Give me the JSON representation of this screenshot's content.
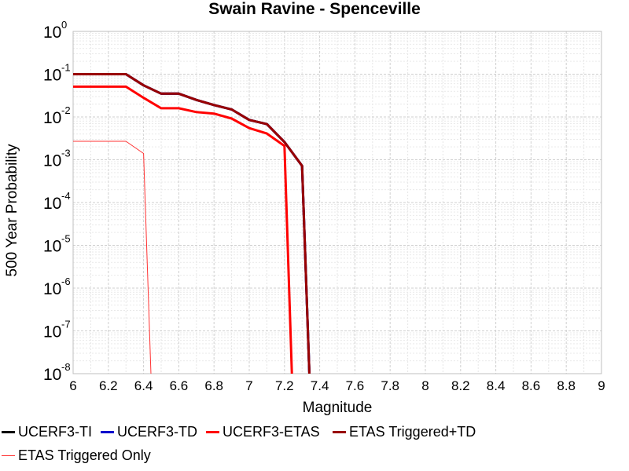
{
  "chart_data": {
    "type": "line",
    "title": "Swain Ravine - Spenceville",
    "xlabel": "Magnitude",
    "ylabel": "500 Year Probability",
    "xlim": [
      6,
      9
    ],
    "ylim": [
      1e-08,
      1
    ],
    "yscale": "log",
    "x_ticks": [
      "6",
      "6.2",
      "6.4",
      "6.6",
      "6.8",
      "7",
      "7.2",
      "7.4",
      "7.6",
      "7.8",
      "8",
      "8.2",
      "8.4",
      "8.6",
      "8.8",
      "9"
    ],
    "y_ticks": [
      {
        "base": "10",
        "exp": "0"
      },
      {
        "base": "10",
        "exp": "-1"
      },
      {
        "base": "10",
        "exp": "-2"
      },
      {
        "base": "10",
        "exp": "-3"
      },
      {
        "base": "10",
        "exp": "-4"
      },
      {
        "base": "10",
        "exp": "-5"
      },
      {
        "base": "10",
        "exp": "-6"
      },
      {
        "base": "10",
        "exp": "-7"
      },
      {
        "base": "10",
        "exp": "-8"
      }
    ],
    "grid": true,
    "legend_position": "bottom",
    "series": [
      {
        "name": "UCERF3-TI",
        "color": "#000000",
        "width": 3,
        "x": [
          6.0,
          6.3,
          6.4,
          6.5,
          6.6,
          6.7,
          6.8,
          6.9,
          7.0,
          7.1,
          7.2,
          7.3,
          7.35
        ],
        "y": [
          0.1,
          0.1,
          0.055,
          0.035,
          0.035,
          0.025,
          0.019,
          0.015,
          0.0085,
          0.0068,
          0.0026,
          0.00072,
          1e-09
        ]
      },
      {
        "name": "UCERF3-TD",
        "color": "#0000cc",
        "width": 3,
        "x": [
          6.0,
          6.3,
          6.4,
          6.5,
          6.6,
          6.7,
          6.8,
          6.9,
          7.0,
          7.1,
          7.2,
          7.3,
          7.35
        ],
        "y": [
          0.1,
          0.1,
          0.055,
          0.035,
          0.035,
          0.025,
          0.019,
          0.015,
          0.0085,
          0.0068,
          0.0026,
          0.00072,
          1e-09
        ]
      },
      {
        "name": "UCERF3-ETAS",
        "color": "#ff0000",
        "width": 3,
        "x": [
          6.0,
          6.3,
          6.4,
          6.5,
          6.6,
          6.7,
          6.8,
          6.9,
          7.0,
          7.1,
          7.2,
          7.25
        ],
        "y": [
          0.051,
          0.051,
          0.028,
          0.016,
          0.016,
          0.013,
          0.012,
          0.0092,
          0.0055,
          0.0041,
          0.0021,
          1e-09
        ]
      },
      {
        "name": "ETAS Triggered+TD",
        "color": "#990000",
        "width": 3,
        "x": [
          6.0,
          6.3,
          6.4,
          6.5,
          6.6,
          6.7,
          6.8,
          6.9,
          7.0,
          7.1,
          7.2,
          7.3,
          7.35
        ],
        "y": [
          0.1,
          0.1,
          0.055,
          0.035,
          0.035,
          0.025,
          0.019,
          0.015,
          0.0085,
          0.0068,
          0.0026,
          0.00072,
          1e-09
        ]
      },
      {
        "name": "ETAS Triggered Only",
        "color": "#ff3333",
        "width": 1,
        "x": [
          6.0,
          6.3,
          6.4,
          6.45
        ],
        "y": [
          0.0027,
          0.0027,
          0.0014,
          1e-09
        ]
      }
    ]
  }
}
